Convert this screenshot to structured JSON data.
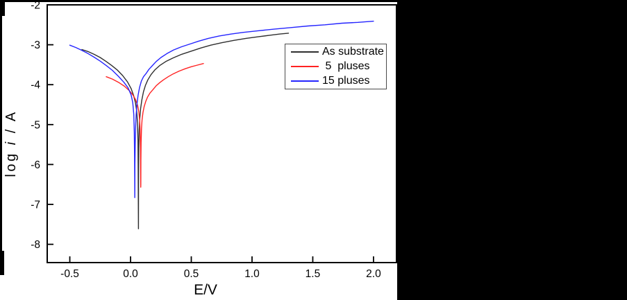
{
  "figure": {
    "background_color": "#ffffff",
    "masked_region_color": "#000000",
    "frame_color": "#000000"
  },
  "chart_data": {
    "type": "line",
    "title": "",
    "xlabel": "E/V",
    "ylabel": "log i / A",
    "ylabel_parts": {
      "prefix": "log ",
      "italic": "i",
      "suffix": " / A"
    },
    "xlim": [
      -0.686,
      2.189
    ],
    "ylim": [
      -8.458,
      -2.0
    ],
    "grid": false,
    "legend_position": "upper-right-inside",
    "x_ticks": [
      {
        "value": -0.5,
        "label": "-0.5"
      },
      {
        "value": 0.0,
        "label": "0.0"
      },
      {
        "value": 0.5,
        "label": "0.5"
      },
      {
        "value": 1.0,
        "label": "1.0"
      },
      {
        "value": 1.5,
        "label": "1.5"
      },
      {
        "value": 2.0,
        "label": "2.0"
      }
    ],
    "y_ticks": [
      {
        "value": -2,
        "label": "-2"
      },
      {
        "value": -3,
        "label": "-3"
      },
      {
        "value": -4,
        "label": "-4"
      },
      {
        "value": -5,
        "label": "-5"
      },
      {
        "value": -6,
        "label": "-6"
      },
      {
        "value": -7,
        "label": "-7"
      },
      {
        "value": -8,
        "label": "-8"
      }
    ],
    "series": [
      {
        "name": "As substrate",
        "color": "#2e2e2e",
        "corrosion_potential_E": 0.065,
        "points": [
          [
            -0.4,
            -3.12
          ],
          [
            -0.35,
            -3.17
          ],
          [
            -0.3,
            -3.24
          ],
          [
            -0.25,
            -3.32
          ],
          [
            -0.2,
            -3.42
          ],
          [
            -0.155,
            -3.52
          ],
          [
            -0.11,
            -3.63
          ],
          [
            -0.065,
            -3.77
          ],
          [
            -0.025,
            -3.93
          ],
          [
            0.005,
            -4.1
          ],
          [
            0.025,
            -4.27
          ],
          [
            0.04,
            -4.45
          ],
          [
            0.05,
            -4.65
          ],
          [
            0.057,
            -4.95
          ],
          [
            0.061,
            -5.4
          ],
          [
            0.063,
            -6.1
          ],
          [
            0.064,
            -6.9
          ],
          [
            0.065,
            -7.61
          ],
          [
            0.0655,
            -6.8
          ],
          [
            0.066,
            -6.1
          ],
          [
            0.068,
            -5.55
          ],
          [
            0.071,
            -5.15
          ],
          [
            0.076,
            -4.85
          ],
          [
            0.083,
            -4.6
          ],
          [
            0.093,
            -4.38
          ],
          [
            0.106,
            -4.18
          ],
          [
            0.122,
            -4.02
          ],
          [
            0.142,
            -3.88
          ],
          [
            0.168,
            -3.75
          ],
          [
            0.2,
            -3.63
          ],
          [
            0.24,
            -3.52
          ],
          [
            0.29,
            -3.42
          ],
          [
            0.35,
            -3.33
          ],
          [
            0.42,
            -3.24
          ],
          [
            0.5,
            -3.16
          ],
          [
            0.58,
            -3.08
          ],
          [
            0.66,
            -3.01
          ],
          [
            0.75,
            -2.95
          ],
          [
            0.85,
            -2.89
          ],
          [
            0.95,
            -2.84
          ],
          [
            1.05,
            -2.8
          ],
          [
            1.15,
            -2.76
          ],
          [
            1.23,
            -2.73
          ],
          [
            1.3,
            -2.71
          ]
        ]
      },
      {
        "name": " 5  pluses",
        "color": "#ff2222",
        "corrosion_potential_E": 0.084,
        "points": [
          [
            -0.2,
            -3.8
          ],
          [
            -0.15,
            -3.86
          ],
          [
            -0.1,
            -3.94
          ],
          [
            -0.05,
            -4.04
          ],
          [
            -0.01,
            -4.15
          ],
          [
            0.02,
            -4.26
          ],
          [
            0.042,
            -4.38
          ],
          [
            0.058,
            -4.52
          ],
          [
            0.068,
            -4.68
          ],
          [
            0.075,
            -4.88
          ],
          [
            0.079,
            -5.15
          ],
          [
            0.082,
            -5.6
          ],
          [
            0.083,
            -6.1
          ],
          [
            0.084,
            -6.57
          ],
          [
            0.0845,
            -6.5
          ],
          [
            0.085,
            -5.9
          ],
          [
            0.087,
            -5.45
          ],
          [
            0.09,
            -5.1
          ],
          [
            0.095,
            -4.88
          ],
          [
            0.102,
            -4.7
          ],
          [
            0.112,
            -4.55
          ],
          [
            0.125,
            -4.42
          ],
          [
            0.14,
            -4.31
          ],
          [
            0.16,
            -4.21
          ],
          [
            0.183,
            -4.13
          ],
          [
            0.21,
            -4.03
          ],
          [
            0.24,
            -3.95
          ],
          [
            0.27,
            -3.88
          ],
          [
            0.31,
            -3.8
          ],
          [
            0.35,
            -3.73
          ],
          [
            0.4,
            -3.66
          ],
          [
            0.45,
            -3.6
          ],
          [
            0.5,
            -3.55
          ],
          [
            0.55,
            -3.51
          ],
          [
            0.6,
            -3.47
          ]
        ]
      },
      {
        "name": "15 pluses",
        "color": "#2424ff",
        "corrosion_potential_E": 0.035,
        "points": [
          [
            -0.5,
            -3.01
          ],
          [
            -0.45,
            -3.07
          ],
          [
            -0.4,
            -3.14
          ],
          [
            -0.35,
            -3.22
          ],
          [
            -0.3,
            -3.31
          ],
          [
            -0.25,
            -3.41
          ],
          [
            -0.2,
            -3.52
          ],
          [
            -0.15,
            -3.64
          ],
          [
            -0.1,
            -3.79
          ],
          [
            -0.055,
            -3.94
          ],
          [
            -0.02,
            -4.08
          ],
          [
            0.005,
            -4.26
          ],
          [
            0.018,
            -4.45
          ],
          [
            0.027,
            -4.75
          ],
          [
            0.031,
            -5.2
          ],
          [
            0.033,
            -5.8
          ],
          [
            0.034,
            -6.3
          ],
          [
            0.035,
            -6.83
          ],
          [
            0.0355,
            -6.6
          ],
          [
            0.036,
            -6.0
          ],
          [
            0.038,
            -5.5
          ],
          [
            0.041,
            -5.1
          ],
          [
            0.046,
            -4.75
          ],
          [
            0.053,
            -4.48
          ],
          [
            0.062,
            -4.26
          ],
          [
            0.074,
            -4.07
          ],
          [
            0.089,
            -3.91
          ],
          [
            0.107,
            -3.8
          ],
          [
            0.128,
            -3.72
          ],
          [
            0.15,
            -3.62
          ],
          [
            0.18,
            -3.52
          ],
          [
            0.211,
            -3.42
          ],
          [
            0.25,
            -3.32
          ],
          [
            0.3,
            -3.22
          ],
          [
            0.354,
            -3.13
          ],
          [
            0.42,
            -3.05
          ],
          [
            0.49,
            -2.98
          ],
          [
            0.56,
            -2.91
          ],
          [
            0.64,
            -2.84
          ],
          [
            0.73,
            -2.78
          ],
          [
            0.83,
            -2.73
          ],
          [
            0.93,
            -2.69
          ],
          [
            1.05,
            -2.65
          ],
          [
            1.18,
            -2.61
          ],
          [
            1.32,
            -2.57
          ],
          [
            1.46,
            -2.53
          ],
          [
            1.6,
            -2.5
          ],
          [
            1.74,
            -2.46
          ],
          [
            1.87,
            -2.44
          ],
          [
            2.0,
            -2.41
          ]
        ]
      }
    ]
  }
}
